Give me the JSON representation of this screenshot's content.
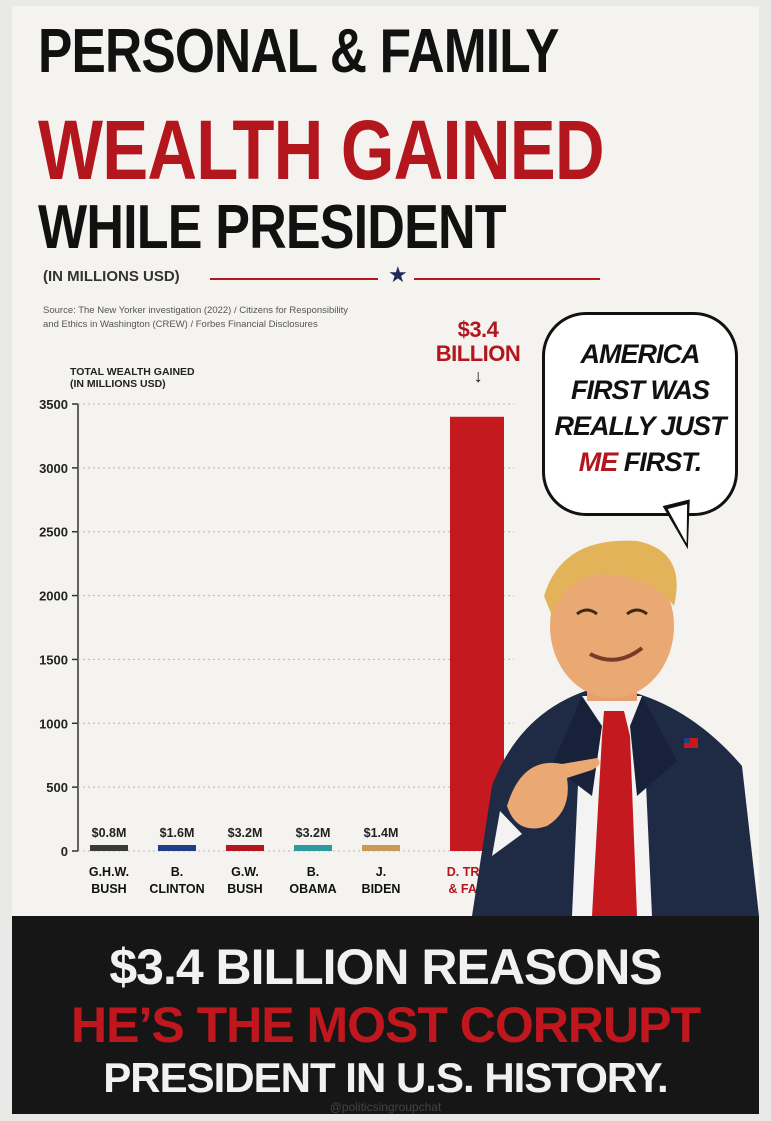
{
  "title": {
    "line1": "PERSONAL & FAMILY",
    "line2": "WEALTH GAINED",
    "line3": "WHILE PRESIDENT"
  },
  "unit_label": "(IN MILLIONS USD)",
  "source_line1": "Source: The New Yorker investigation (2022) / Citizens for Responsibility",
  "source_line2": "and Ethics in Washington (CREW) / Forbes Financial Disclosures",
  "axis_title_line1": "TOTAL WEALTH GAINED",
  "axis_title_line2": "(IN MILLIONS USD)",
  "callout": {
    "line1": "$3.4",
    "line2": "BILLION",
    "arrow": "↓"
  },
  "speech_bubble": {
    "line1": "AMERICA",
    "line2": "FIRST WAS",
    "line3": "REALLY JUST",
    "line4_red": "ME",
    "line4_rest": " FIRST."
  },
  "banner": {
    "line1": "$3.4 BILLION REASONS",
    "line2": "HE’S THE MOST CORRUPT",
    "line3": "PRESIDENT IN U.S. HISTORY."
  },
  "footer": "@politicsingroupchat",
  "colors": {
    "title_red": "#b3161d",
    "banner_bg": "#161616",
    "star": "#1e2a5a"
  },
  "chart_data": {
    "type": "bar",
    "ylim": [
      0,
      3500
    ],
    "yticks": [
      0,
      500,
      1000,
      1500,
      2000,
      2500,
      3000,
      3500
    ],
    "grid": true,
    "bars": [
      {
        "label_lines": [
          "G.H.W.",
          "BUSH"
        ],
        "value": 0.8,
        "data_label": "$0.8M",
        "color": "#3a3a3a",
        "label_color": "#111"
      },
      {
        "label_lines": [
          "B.",
          "CLINTON"
        ],
        "value": 1.6,
        "data_label": "$1.6M",
        "color": "#1f3f8a",
        "label_color": "#111"
      },
      {
        "label_lines": [
          "G.W.",
          "BUSH"
        ],
        "value": 3.2,
        "data_label": "$3.2M",
        "color": "#b3161d",
        "label_color": "#111"
      },
      {
        "label_lines": [
          "B.",
          "OBAMA"
        ],
        "value": 3.2,
        "data_label": "$3.2M",
        "color": "#2e9aa0",
        "label_color": "#111"
      },
      {
        "label_lines": [
          "J.",
          "BIDEN"
        ],
        "value": 1.4,
        "data_label": "$1.4M",
        "color": "#c89a55",
        "label_color": "#111"
      },
      {
        "label_lines": [
          "D. TRUMP",
          "& FAMILY"
        ],
        "value": 3400,
        "data_label": "",
        "color": "#c41a1f",
        "label_color": "#b3161d"
      }
    ]
  }
}
